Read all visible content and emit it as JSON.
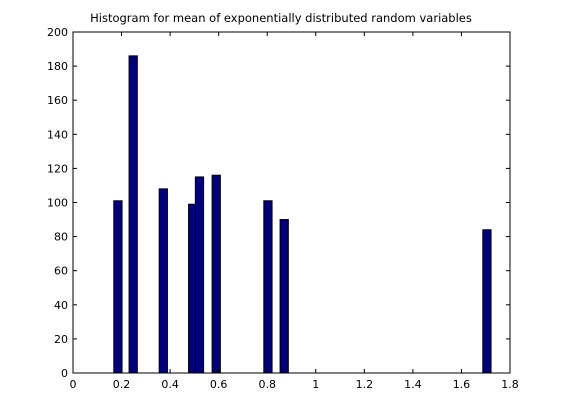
{
  "chart_data": {
    "type": "bar",
    "title": "Histogram for mean of exponentially distributed random variables",
    "xlabel": "",
    "ylabel": "",
    "xlim": [
      0,
      1.8
    ],
    "ylim": [
      0,
      200
    ],
    "xticks": [
      0,
      0.2,
      0.4,
      0.6,
      0.8,
      1,
      1.2,
      1.4,
      1.6,
      1.8
    ],
    "xtick_labels": [
      "0",
      "0.2",
      "0.4",
      "0.6",
      "0.8",
      "1",
      "1.2",
      "1.4",
      "1.6",
      "1.8"
    ],
    "yticks": [
      0,
      20,
      40,
      60,
      80,
      100,
      120,
      140,
      160,
      180,
      200
    ],
    "ytick_labels": [
      "0",
      "20",
      "40",
      "60",
      "80",
      "100",
      "120",
      "140",
      "160",
      "180",
      "200"
    ],
    "bar_width": 0.034,
    "x": [
      0.185,
      0.248,
      0.372,
      0.493,
      0.521,
      0.59,
      0.803,
      0.87,
      1.705
    ],
    "values": [
      101,
      186,
      108,
      99,
      115,
      116,
      101,
      90,
      84
    ],
    "bar_color": "#00007f",
    "grid": false,
    "legend": "none"
  }
}
